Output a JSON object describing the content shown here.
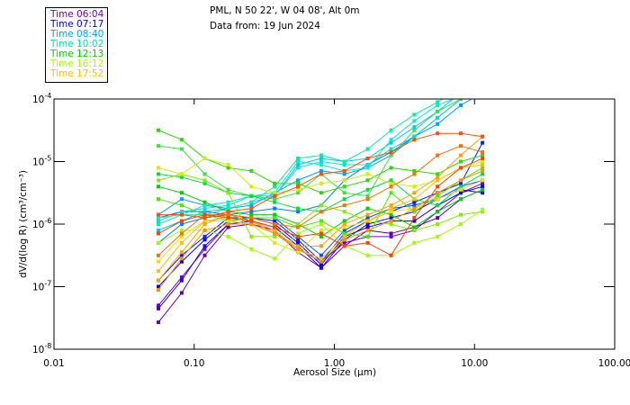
{
  "header": {
    "location": "PML, N 50 22', W 04 08', Alt 0m",
    "date": "Data from: 19 Jun 2024"
  },
  "legend": [
    {
      "label": "Time 06:04",
      "color": "#7000c0"
    },
    {
      "label": "Time 07:17",
      "color": "#0000ff"
    },
    {
      "label": "Time 08:40",
      "color": "#00a0ff"
    },
    {
      "label": "Time 10:02",
      "color": "#00e0b0"
    },
    {
      "label": "Time 12:13",
      "color": "#00d000"
    },
    {
      "label": "Time 16:12",
      "color": "#a0ff00"
    },
    {
      "label": "Time 17:52",
      "color": "#ffc000"
    }
  ],
  "chart_data": {
    "type": "line",
    "title": "PML, N 50 22', W 04 08', Alt 0m — Data from: 19 Jun 2024",
    "xlabel": "Aerosol Size (µm)",
    "ylabel": "dV/d(log R) (cm³/cm⁻³)",
    "x_scale": "log",
    "y_scale": "log",
    "xlim": [
      0.01,
      100
    ],
    "ylim": [
      1e-08,
      0.0001
    ],
    "x_ticks": [
      "0.01",
      "0.10",
      "1.00",
      "10.00",
      "100.00"
    ],
    "y_ticks": [
      {
        "base": "10",
        "exp": "-4"
      },
      {
        "base": "10",
        "exp": "-5"
      },
      {
        "base": "10",
        "exp": "-6"
      },
      {
        "base": "10",
        "exp": "-7"
      },
      {
        "base": "10",
        "exp": "-8"
      }
    ],
    "x": [
      0.0556,
      0.0815,
      0.119,
      0.175,
      0.256,
      0.375,
      0.55,
      0.806,
      1.18,
      1.73,
      2.54,
      3.72,
      5.45,
      7.98,
      11.4
    ],
    "series_note": "values are log10 of dV/d(log R)",
    "series": [
      {
        "color": "#6000b0",
        "values_log10": [
          -7.57,
          -7.1,
          -6.5,
          -6.05,
          -6.0,
          -6.1,
          -6.45,
          -6.7,
          -6.35,
          -6.1,
          -6.15,
          -6.05,
          -5.9,
          -5.6,
          -5.45
        ]
      },
      {
        "color": "#7000d0",
        "values_log10": [
          -7.3,
          -6.85,
          -6.4,
          -6.0,
          -5.95,
          -6.1,
          -6.4,
          -6.6,
          -6.3,
          -6.2,
          -6.2,
          -6.1,
          -5.8,
          -5.5,
          -5.35
        ]
      },
      {
        "color": "#2000ff",
        "values_log10": [
          -7.35,
          -6.9,
          -6.35,
          -6.0,
          -5.95,
          -6.05,
          -6.35,
          -6.7,
          -6.25,
          -6.0,
          -5.9,
          -5.8,
          -5.6,
          -5.45,
          -5.5
        ]
      },
      {
        "color": "#0000ff",
        "values_log10": [
          -7.0,
          -6.6,
          -6.25,
          -5.95,
          -5.9,
          -6.0,
          -6.3,
          -6.65,
          -6.2,
          -6.05,
          -5.95,
          -5.95,
          -5.7,
          -5.5,
          -5.4
        ]
      },
      {
        "color": "#0020ff",
        "values_log10": [
          -6.9,
          -6.5,
          -6.2,
          -5.9,
          -5.9,
          -5.95,
          -6.25,
          -6.6,
          -6.15,
          -5.95,
          -5.8,
          -5.65,
          -5.5,
          -5.35,
          -4.7
        ]
      },
      {
        "color": "#0050ff",
        "values_log10": [
          -5.9,
          -5.8,
          -5.8,
          -5.85,
          -5.9,
          -5.9,
          -6.2,
          -6.5,
          -6.1,
          -5.9,
          -5.75,
          -5.7,
          -5.6,
          -5.4,
          -5.3
        ]
      },
      {
        "color": "#0080ff",
        "values_log10": [
          -6.3,
          -6.0,
          -5.9,
          -5.85,
          -5.8,
          -5.75,
          -5.8,
          -5.7,
          -5.3,
          -5.05,
          -4.85,
          -4.6,
          -4.3,
          -4.0,
          -3.8
        ]
      },
      {
        "color": "#00a0ff",
        "values_log10": [
          -5.85,
          -5.6,
          -5.7,
          -5.75,
          -5.7,
          -5.5,
          -5.3,
          -5.15,
          -5.2,
          -5.1,
          -4.9,
          -4.6,
          -4.4,
          -4.1,
          -3.9
        ]
      },
      {
        "color": "#00c8ff",
        "values_log10": [
          -6.1,
          -5.95,
          -5.8,
          -5.75,
          -5.65,
          -5.55,
          -5.05,
          -4.95,
          -5.0,
          -4.95,
          -4.7,
          -4.45,
          -4.2,
          -3.9,
          -3.7
        ]
      },
      {
        "color": "#00e0e0",
        "values_log10": [
          -5.95,
          -5.8,
          -5.75,
          -5.7,
          -5.55,
          -5.55,
          -5.1,
          -5.0,
          -5.05,
          -5.05,
          -4.8,
          -4.6,
          -4.3,
          -4.0,
          -3.8
        ]
      },
      {
        "color": "#00f0d0",
        "values_log10": [
          -5.9,
          -5.85,
          -5.7,
          -5.65,
          -5.55,
          -5.5,
          -5.0,
          -5.05,
          -5.15,
          -5.1,
          -4.65,
          -4.35,
          -4.1,
          -3.95,
          -3.8
        ]
      },
      {
        "color": "#00f0a0",
        "values_log10": [
          -6.0,
          -5.85,
          -5.85,
          -5.75,
          -5.65,
          -5.4,
          -4.95,
          -4.9,
          -5.0,
          -4.8,
          -4.5,
          -4.25,
          -4.05,
          -3.8,
          -3.7
        ]
      },
      {
        "color": "#20e000",
        "values_log10": [
          -4.5,
          -4.65,
          -4.95,
          -5.1,
          -5.15,
          -5.35,
          -5.35,
          -5.5,
          -5.4,
          -5.3,
          -5.1,
          -5.15,
          -5.2,
          -5.0,
          -4.9
        ]
      },
      {
        "color": "#40e040",
        "values_log10": [
          -4.75,
          -4.8,
          -5.2,
          -5.45,
          -5.55,
          -5.6,
          -5.5,
          -5.2,
          -5.5,
          -5.55,
          -4.9,
          -4.5,
          -4.2,
          -4.0,
          -3.8
        ]
      },
      {
        "color": "#00e040",
        "values_log10": [
          -5.2,
          -5.25,
          -5.35,
          -5.5,
          -5.55,
          -5.65,
          -5.75,
          -5.8,
          -5.6,
          -5.45,
          -5.3,
          -5.6,
          -5.7,
          -5.4,
          -5.2
        ]
      },
      {
        "color": "#00d000",
        "values_log10": [
          -5.4,
          -5.5,
          -5.65,
          -5.8,
          -5.85,
          -5.85,
          -6.0,
          -6.2,
          -5.95,
          -5.75,
          -5.85,
          -6.05,
          -5.8,
          -5.6,
          -5.45
        ]
      },
      {
        "color": "#40f000",
        "values_log10": [
          -5.6,
          -5.7,
          -5.85,
          -5.95,
          -5.9,
          -5.9,
          -6.05,
          -5.95,
          -6.15,
          -6.2,
          -5.5,
          -5.8,
          -5.55,
          -5.3,
          -5.1
        ]
      },
      {
        "color": "#80f000",
        "values_log10": [
          -5.3,
          -5.2,
          -5.3,
          -5.5,
          -6.2,
          -6.2,
          -6.0,
          -5.7,
          -5.8,
          -5.95,
          -6.0,
          -6.1,
          -6.0,
          -5.85,
          -5.8
        ]
      },
      {
        "color": "#a0ff00",
        "values_log10": [
          -6.3,
          -6.1,
          -6.1,
          -6.2,
          -6.4,
          -6.55,
          -6.15,
          -6.0,
          -6.35,
          -6.5,
          -6.5,
          -6.3,
          -6.2,
          -6.0,
          -5.77
        ]
      },
      {
        "color": "#d0f000",
        "values_log10": [
          -5.1,
          -5.2,
          -4.95,
          -5.05,
          -5.4,
          -5.5,
          -5.45,
          -5.35,
          -5.3,
          -5.2,
          -5.35,
          -5.4,
          -5.3,
          -5.1,
          -5.0
        ]
      },
      {
        "color": "#f0e000",
        "values_log10": [
          -6.6,
          -6.2,
          -5.95,
          -5.95,
          -6.0,
          -6.3,
          -6.45,
          -6.1,
          -6.05,
          -5.95,
          -5.8,
          -5.75,
          -5.6,
          -5.45,
          -5.3
        ]
      },
      {
        "color": "#ffc000",
        "values_log10": [
          -6.75,
          -6.3,
          -5.95,
          -5.9,
          -5.95,
          -6.1,
          -6.4,
          -6.55,
          -6.2,
          -5.95,
          -5.75,
          -5.6,
          -5.3,
          -5.1,
          -5.05
        ]
      },
      {
        "color": "#ffa000",
        "values_log10": [
          -6.9,
          -6.45,
          -6.0,
          -5.85,
          -5.95,
          -6.15,
          -6.35,
          -6.35,
          -6.0,
          -5.85,
          -5.7,
          -5.5,
          -5.25,
          -4.9,
          -4.6
        ]
      },
      {
        "color": "#ff9000",
        "values_log10": [
          -7.05,
          -6.55,
          -6.1,
          -6.0,
          -6.0,
          -6.15,
          -6.4,
          -6.6,
          -6.25,
          -6.1,
          -5.95,
          -5.75,
          -5.5,
          -5.3,
          -5.15
        ]
      },
      {
        "color": "#ff7000",
        "values_log10": [
          -6.5,
          -6.15,
          -5.85,
          -5.85,
          -5.9,
          -6.0,
          -6.05,
          -5.8,
          -5.7,
          -5.6,
          -5.4,
          -5.2,
          -4.9,
          -4.75,
          -4.85
        ]
      },
      {
        "color": "#ff4000",
        "values_log10": [
          -6.15,
          -5.95,
          -5.85,
          -5.9,
          -5.95,
          -6.05,
          -6.2,
          -6.15,
          -6.35,
          -6.3,
          -6.5,
          -5.9,
          -5.4,
          -5.1,
          -4.95
        ]
      },
      {
        "color": "#ff5000",
        "values_log10": [
          -5.85,
          -5.85,
          -5.9,
          -5.8,
          -5.75,
          -5.55,
          -5.4,
          -5.2,
          -5.15,
          -4.95,
          -4.85,
          -4.65,
          -4.55,
          -4.55,
          -4.6
        ]
      }
    ]
  }
}
